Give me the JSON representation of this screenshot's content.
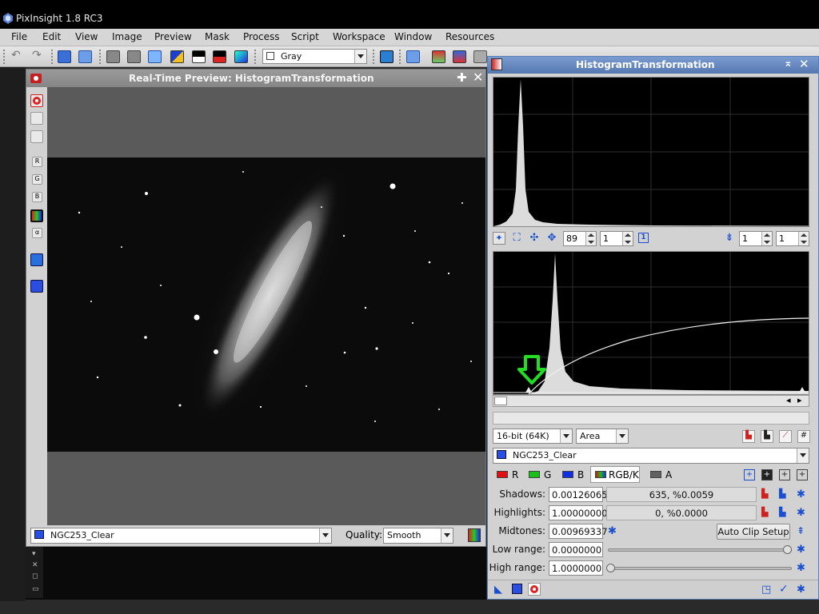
{
  "app": {
    "title": "PixInsight 1.8 RC3"
  },
  "menu": [
    "File",
    "Edit",
    "View",
    "Image",
    "Preview",
    "Mask",
    "Process",
    "Script",
    "Workspace",
    "Window",
    "Resources"
  ],
  "toolbar": {
    "display_channel": "Gray"
  },
  "preview": {
    "title": "Real-Time Preview: HistogramTransformation",
    "image_select": "NGC253_Clear",
    "quality_label": "Quality:",
    "quality_value": "Smooth",
    "channel_buttons": [
      "R",
      "G",
      "B",
      "RGB",
      "α"
    ]
  },
  "histogram": {
    "title": "HistogramTransformation",
    "zoom_h": "89",
    "zoom_v": "1",
    "zoom_b1": "1",
    "zoom_b2": "1",
    "resolution": "16-bit (64K)",
    "graph_style": "Area",
    "view": "NGC253_Clear",
    "channels": [
      {
        "label": "R",
        "color": "#e01010"
      },
      {
        "label": "G",
        "color": "#18c018"
      },
      {
        "label": "B",
        "color": "#1030e0"
      },
      {
        "label": "RGB/K",
        "color": "#888888"
      },
      {
        "label": "A",
        "color": "#606060"
      }
    ],
    "params": {
      "shadows_label": "Shadows:",
      "shadows_value": "0.00126065",
      "shadows_info": "635, %0.0059",
      "highlights_label": "Highlights:",
      "highlights_value": "1.00000000",
      "highlights_info": "0, %0.0000",
      "midtones_label": "Midtones:",
      "midtones_value": "0.00969337",
      "auto_clip": "Auto Clip Setup",
      "low_range_label": "Low range:",
      "low_range_value": "0.0000000",
      "high_range_label": "High range:",
      "high_range_value": "1.0000000"
    }
  },
  "colors": {
    "accent": "#5577b0",
    "marker": "#22dd22"
  }
}
